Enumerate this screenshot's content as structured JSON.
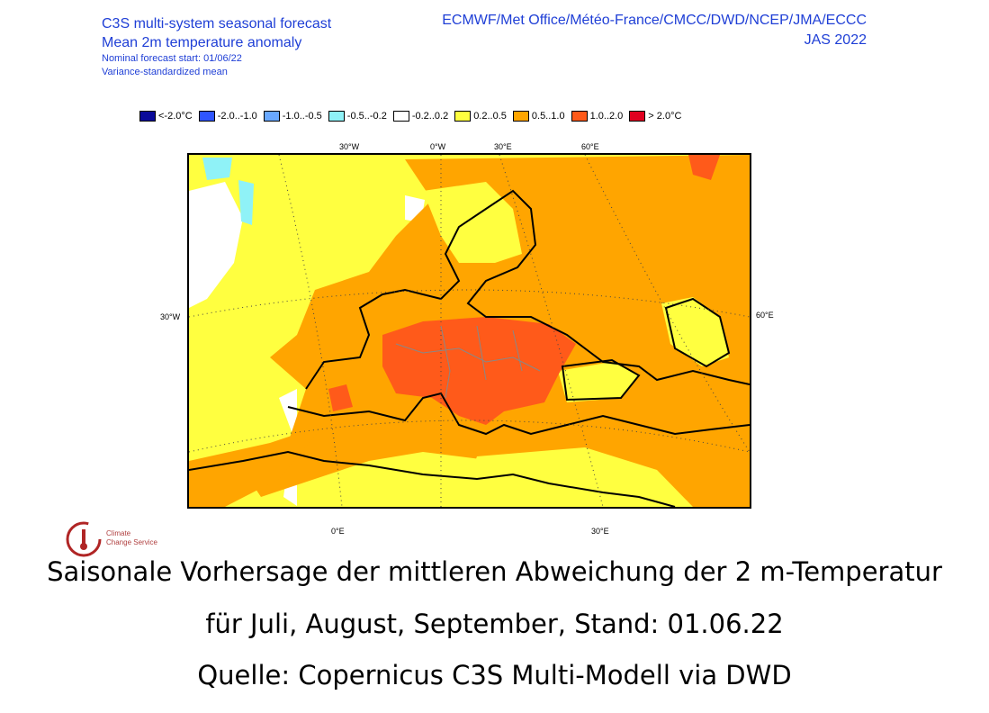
{
  "header": {
    "title_line1": "C3S multi-system seasonal forecast",
    "title_line2": "Mean 2m temperature anomaly",
    "forecast_start": "Nominal forecast start: 01/06/22",
    "variance": "Variance-standardized mean",
    "models": "ECMWF/Met Office/Météo-France/CMCC/DWD/NCEP/JMA/ECCC",
    "period": "JAS 2022"
  },
  "legend": [
    {
      "label": "<-2.0°C",
      "color": "#0a0a9a"
    },
    {
      "label": "-2.0..-1.0",
      "color": "#2f55ff"
    },
    {
      "label": "-1.0..-0.5",
      "color": "#69a8ff"
    },
    {
      "label": "-0.5..-0.2",
      "color": "#8ff2f7"
    },
    {
      "label": "-0.2..0.2",
      "color": "#ffffff"
    },
    {
      "label": "0.2..0.5",
      "color": "#ffff40"
    },
    {
      "label": "0.5..1.0",
      "color": "#ffa500"
    },
    {
      "label": "1.0..2.0",
      "color": "#ff5a1a"
    },
    {
      "label": "> 2.0°C",
      "color": "#e00020"
    }
  ],
  "map": {
    "lon_top": [
      "30°W",
      "0°W",
      "30°E",
      "60°E"
    ],
    "lat_left": "30°W",
    "lat_right": "60°E",
    "lon_bottom": [
      "0°E",
      "30°E"
    ]
  },
  "logo": {
    "line1": "Climate",
    "line2": "Change Service"
  },
  "caption": {
    "line1": "Saisonale Vorhersage der mittleren Abweichung der 2 m-Temperatur",
    "line2": "für Juli, August, September, Stand: 01.06.22",
    "line3": "Quelle: Copernicus C3S Multi-Modell via DWD"
  }
}
